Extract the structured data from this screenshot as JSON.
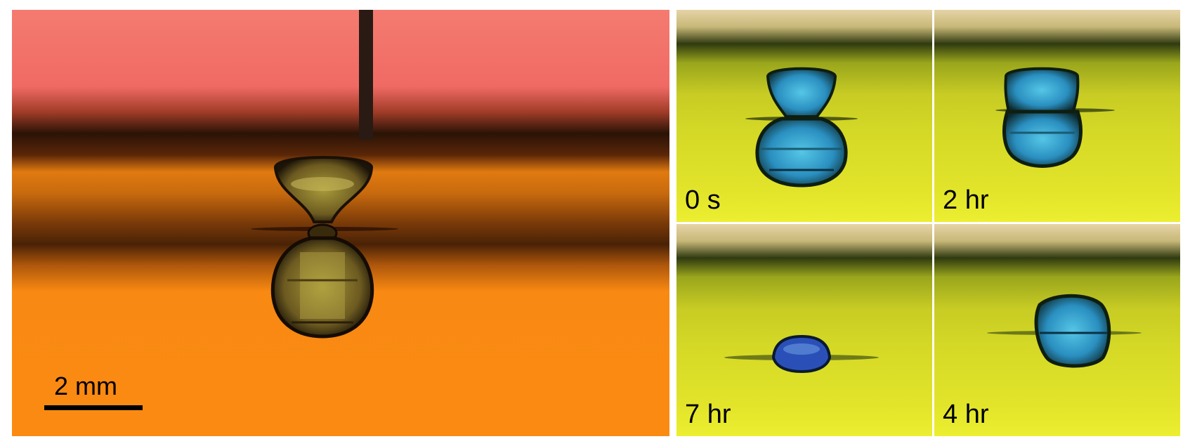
{
  "scale_bar": {
    "label": "2 mm"
  },
  "time_panels": [
    {
      "label": "0 s"
    },
    {
      "label": "2 hr"
    },
    {
      "label": "7 hr"
    },
    {
      "label": "4 hr"
    }
  ],
  "colors": {
    "main_top": "#f47a6e",
    "main_band": "#2a1306",
    "main_bottom": "#fb8a12",
    "inset_top": "#e8d6a0",
    "inset_band": "#2f3a10",
    "inset_bottom": "#e6e82a",
    "droplet_blue": "#2f9fd0"
  }
}
